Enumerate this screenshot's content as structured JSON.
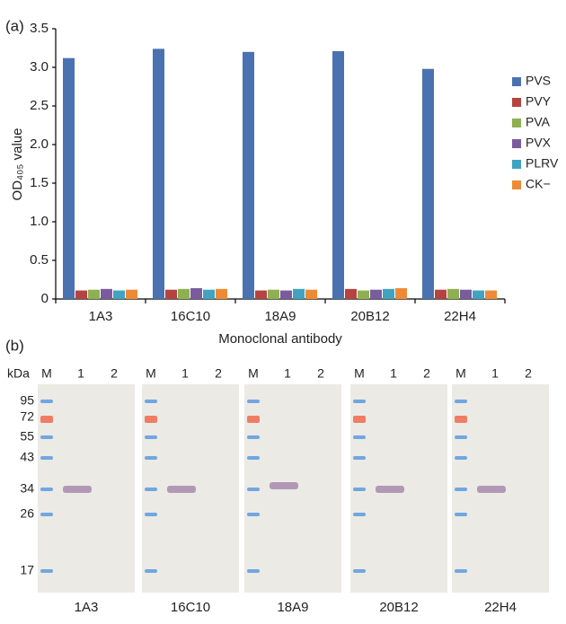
{
  "panel_labels": [
    "(a)",
    "(b)"
  ],
  "chart_data": {
    "type": "bar",
    "y_label": "OD₄₀₅ value",
    "x_label": "Monoclonal antibody",
    "categories": [
      "1A3",
      "16C10",
      "18A9",
      "20B12",
      "22H4"
    ],
    "series": [
      {
        "name": "PVS",
        "color": "#4a72b0",
        "values": [
          3.12,
          3.24,
          3.2,
          3.21,
          2.98
        ]
      },
      {
        "name": "PVY",
        "color": "#b5433f",
        "values": [
          0.11,
          0.12,
          0.11,
          0.13,
          0.12
        ]
      },
      {
        "name": "PVA",
        "color": "#8fb050",
        "values": [
          0.12,
          0.13,
          0.12,
          0.11,
          0.13
        ]
      },
      {
        "name": "PVX",
        "color": "#7a5c9e",
        "values": [
          0.13,
          0.14,
          0.11,
          0.12,
          0.12
        ]
      },
      {
        "name": "PLRV",
        "color": "#40a3c0",
        "values": [
          0.11,
          0.12,
          0.13,
          0.13,
          0.11
        ]
      },
      {
        "name": "CK−",
        "color": "#ee8a35",
        "values": [
          0.12,
          0.13,
          0.12,
          0.14,
          0.11
        ]
      }
    ],
    "ylim": [
      0,
      3.5
    ],
    "yticks": [
      0,
      0.5,
      {
        "value": 1,
        "label": "1.0"
      },
      1.5,
      {
        "value": 2,
        "label": "2.0"
      },
      2.5,
      {
        "value": 3,
        "label": "3.0"
      },
      3.5
    ],
    "grid": false,
    "legend": "right"
  },
  "blot": {
    "kda_label": "kDa",
    "markers": [
      95,
      72,
      55,
      43,
      34,
      26,
      17
    ],
    "lanes": [
      "M",
      "1",
      "2"
    ],
    "antibodies": [
      "1A3",
      "16C10",
      "18A9",
      "20B12",
      "22H4"
    ]
  }
}
